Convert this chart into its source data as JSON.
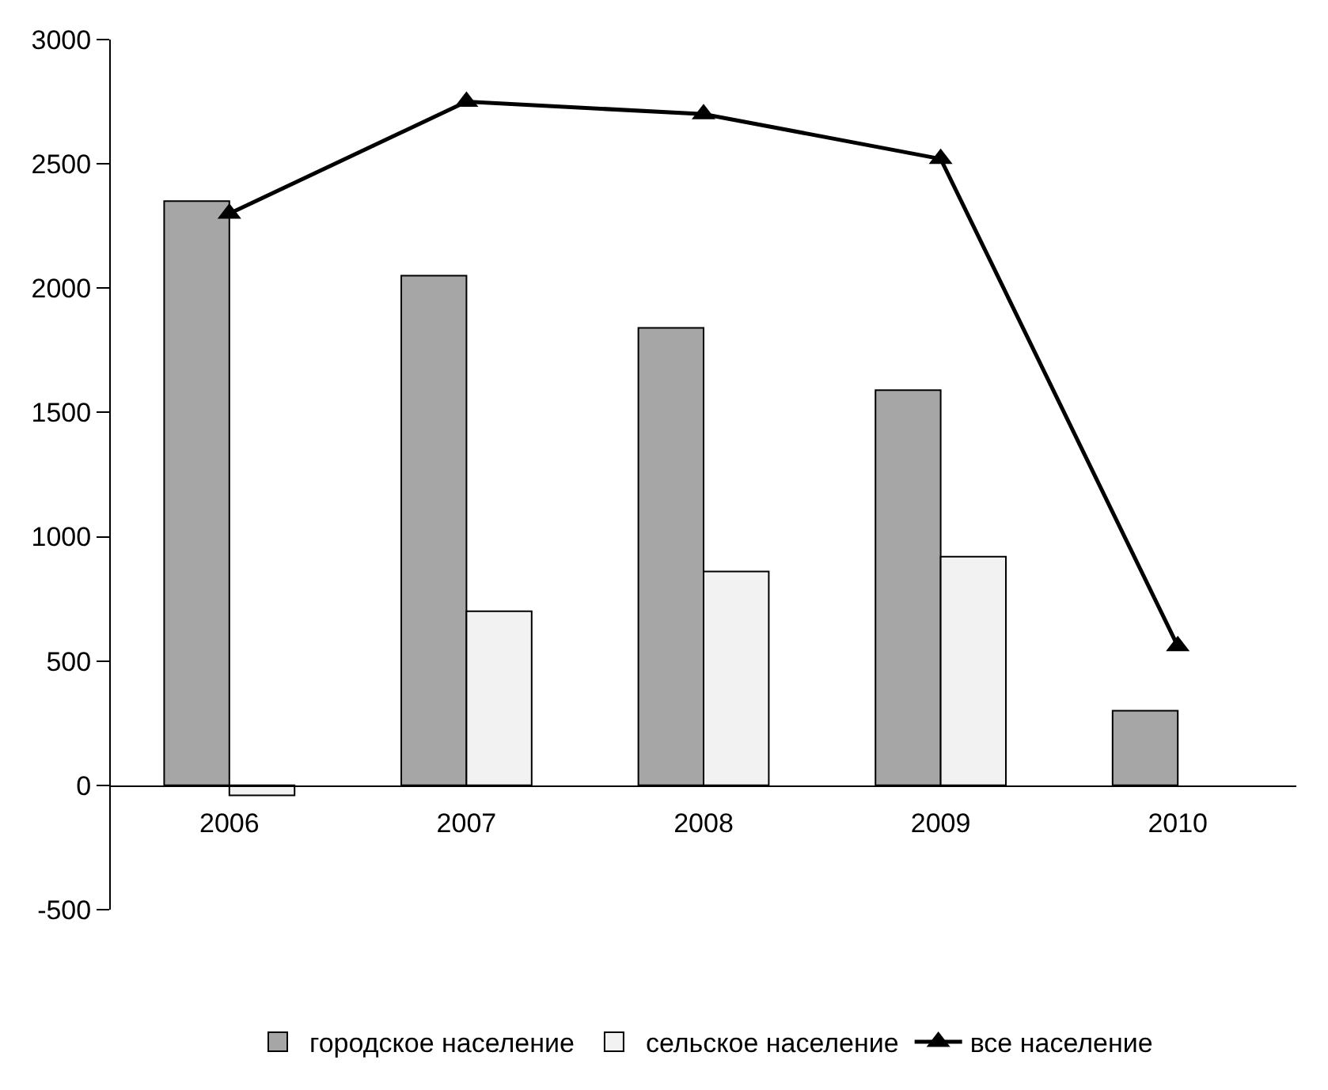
{
  "chart_data": {
    "type": "bar",
    "categories": [
      "2006",
      "2007",
      "2008",
      "2009",
      "2010"
    ],
    "series": [
      {
        "name": "городское население",
        "color": "#a6a6a6",
        "values": [
          2350,
          2050,
          1840,
          1590,
          300
        ]
      },
      {
        "name": "сельское население",
        "color": "#f2f2f2",
        "values": [
          -40,
          700,
          860,
          920,
          null
        ]
      },
      {
        "name": "все население",
        "type": "line",
        "color": "#000000",
        "marker": "triangle",
        "values": [
          2300,
          2750,
          2700,
          2520,
          560
        ]
      }
    ],
    "ylim": [
      -500,
      3000
    ],
    "yticks": [
      -500,
      0,
      500,
      1000,
      1500,
      2000,
      2500,
      3000
    ],
    "grid": false,
    "legend": "bottom"
  }
}
